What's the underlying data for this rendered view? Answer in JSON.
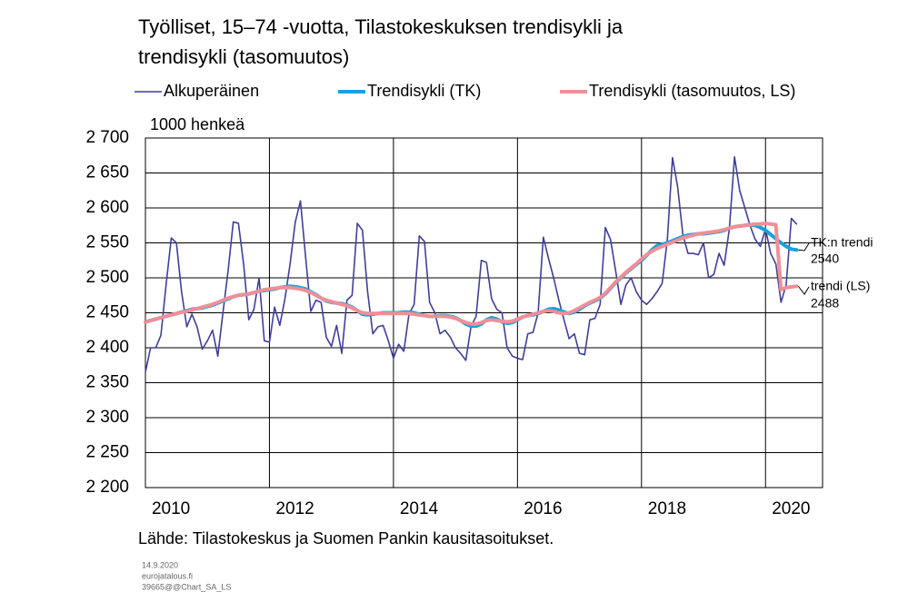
{
  "chart_data": {
    "type": "line",
    "title": "Työlliset, 15–74 -vuotta, Tilastokeskuksen trendisykli ja trendisykli (tasomuutos)",
    "title_lines": [
      "Työlliset, 15–74 -vuotta, Tilastokeskuksen trendisykli ja",
      "trendisykli (tasomuutos)"
    ],
    "y_label": "1000 henkeä",
    "source": "Lähde: Tilastokeskus ja Suomen Pankin kausitasoitukset.",
    "footer": [
      "14.9.2020",
      "eurojatalous.fi",
      "39665@@Chart_SA_LS"
    ],
    "x": [
      2010,
      2010.083,
      2010.167,
      2010.25,
      2010.333,
      2010.417,
      2010.5,
      2010.583,
      2010.667,
      2010.75,
      2010.833,
      2010.917,
      2011,
      2011.083,
      2011.167,
      2011.25,
      2011.333,
      2011.417,
      2011.5,
      2011.583,
      2011.667,
      2011.75,
      2011.833,
      2011.917,
      2012,
      2012.083,
      2012.167,
      2012.25,
      2012.333,
      2012.417,
      2012.5,
      2012.583,
      2012.667,
      2012.75,
      2012.833,
      2012.917,
      2013,
      2013.083,
      2013.167,
      2013.25,
      2013.333,
      2013.417,
      2013.5,
      2013.583,
      2013.667,
      2013.75,
      2013.833,
      2013.917,
      2014,
      2014.083,
      2014.167,
      2014.25,
      2014.333,
      2014.417,
      2014.5,
      2014.583,
      2014.667,
      2014.75,
      2014.833,
      2014.917,
      2015,
      2015.083,
      2015.167,
      2015.25,
      2015.333,
      2015.417,
      2015.5,
      2015.583,
      2015.667,
      2015.75,
      2015.833,
      2015.917,
      2016,
      2016.083,
      2016.167,
      2016.25,
      2016.333,
      2016.417,
      2016.5,
      2016.583,
      2016.667,
      2016.75,
      2016.833,
      2016.917,
      2017,
      2017.083,
      2017.167,
      2017.25,
      2017.333,
      2017.417,
      2017.5,
      2017.583,
      2017.667,
      2017.75,
      2017.833,
      2017.917,
      2018,
      2018.083,
      2018.167,
      2018.25,
      2018.333,
      2018.417,
      2018.5,
      2018.583,
      2018.667,
      2018.75,
      2018.833,
      2018.917,
      2019,
      2019.083,
      2019.167,
      2019.25,
      2019.333,
      2019.417,
      2019.5,
      2019.583,
      2019.667,
      2019.75,
      2019.833,
      2019.917,
      2020,
      2020.083,
      2020.167,
      2020.25,
      2020.333,
      2020.417,
      2020.5
    ],
    "series": [
      {
        "name": "Alkuperäinen",
        "color": "#3f3f9a",
        "width": 1.6,
        "values": [
          2365,
          2400,
          2400,
          2418,
          2490,
          2557,
          2550,
          2480,
          2430,
          2448,
          2430,
          2398,
          2410,
          2425,
          2388,
          2450,
          2510,
          2580,
          2578,
          2520,
          2440,
          2455,
          2500,
          2410,
          2408,
          2458,
          2432,
          2470,
          2520,
          2580,
          2610,
          2530,
          2452,
          2468,
          2465,
          2415,
          2402,
          2432,
          2392,
          2468,
          2475,
          2578,
          2568,
          2480,
          2420,
          2430,
          2432,
          2410,
          2385,
          2405,
          2395,
          2448,
          2462,
          2560,
          2552,
          2465,
          2450,
          2420,
          2425,
          2415,
          2400,
          2392,
          2382,
          2430,
          2445,
          2525,
          2522,
          2470,
          2455,
          2450,
          2400,
          2388,
          2385,
          2383,
          2420,
          2422,
          2450,
          2558,
          2528,
          2500,
          2468,
          2440,
          2413,
          2420,
          2392,
          2390,
          2440,
          2442,
          2462,
          2572,
          2555,
          2510,
          2462,
          2490,
          2500,
          2480,
          2468,
          2462,
          2470,
          2480,
          2492,
          2555,
          2672,
          2630,
          2562,
          2535,
          2535,
          2533,
          2550,
          2500,
          2505,
          2535,
          2518,
          2570,
          2673,
          2625,
          2600,
          2575,
          2555,
          2545,
          2570,
          2535,
          2520,
          2465,
          2490,
          2585,
          2577
        ]
      },
      {
        "name": "Trendisykli (TK)",
        "color": "#1aa0dc",
        "width": 4,
        "values": [
          2437,
          2439,
          2441,
          2443,
          2445,
          2447,
          2449,
          2451,
          2453,
          2455,
          2456,
          2457,
          2459,
          2461,
          2464,
          2467,
          2470,
          2473,
          2475,
          2476,
          2477,
          2479,
          2481,
          2482,
          2483,
          2484,
          2486,
          2487,
          2488,
          2487,
          2486,
          2484,
          2480,
          2476,
          2471,
          2467,
          2465,
          2464,
          2463,
          2461,
          2458,
          2453,
          2448,
          2447,
          2448,
          2449,
          2450,
          2450,
          2450,
          2450,
          2451,
          2451,
          2450,
          2448,
          2446,
          2445,
          2445,
          2446,
          2446,
          2445,
          2443,
          2439,
          2434,
          2431,
          2431,
          2434,
          2440,
          2443,
          2441,
          2437,
          2435,
          2436,
          2440,
          2444,
          2446,
          2447,
          2449,
          2452,
          2455,
          2456,
          2454,
          2451,
          2449,
          2451,
          2455,
          2460,
          2464,
          2467,
          2471,
          2477,
          2485,
          2493,
          2500,
          2507,
          2513,
          2519,
          2525,
          2532,
          2540,
          2546,
          2548,
          2550,
          2553,
          2556,
          2559,
          2561,
          2562,
          2563,
          2563,
          2564,
          2565,
          2566,
          2568,
          2571,
          2573,
          2574,
          2575,
          2576,
          2575,
          2572,
          2568,
          2562,
          2556,
          2550,
          2545,
          2541,
          2540
        ]
      },
      {
        "name": "Trendisykli (tasomuutos, LS)",
        "color": "#ef8f97",
        "width": 4,
        "values": [
          2437,
          2439,
          2441,
          2443,
          2445,
          2447,
          2449,
          2451,
          2452,
          2454,
          2456,
          2458,
          2460,
          2462,
          2465,
          2468,
          2471,
          2473,
          2475,
          2476,
          2477,
          2479,
          2481,
          2483,
          2484,
          2485,
          2486,
          2486,
          2486,
          2485,
          2484,
          2482,
          2479,
          2475,
          2471,
          2468,
          2466,
          2464,
          2462,
          2460,
          2457,
          2453,
          2450,
          2449,
          2449,
          2449,
          2449,
          2449,
          2449,
          2449,
          2449,
          2449,
          2448,
          2447,
          2446,
          2445,
          2445,
          2445,
          2445,
          2444,
          2442,
          2439,
          2436,
          2434,
          2434,
          2436,
          2439,
          2440,
          2439,
          2438,
          2437,
          2438,
          2441,
          2444,
          2446,
          2448,
          2450,
          2452,
          2453,
          2452,
          2450,
          2449,
          2450,
          2453,
          2457,
          2461,
          2465,
          2468,
          2472,
          2478,
          2486,
          2494,
          2501,
          2508,
          2514,
          2520,
          2527,
          2533,
          2538,
          2542,
          2545,
          2548,
          2551,
          2554,
          2557,
          2559,
          2561,
          2563,
          2564,
          2565,
          2566,
          2567,
          2569,
          2571,
          2573,
          2574,
          2575,
          2576,
          2577,
          2577,
          2578,
          2577,
          2576,
          2483,
          2486,
          2487,
          2488
        ]
      }
    ],
    "annotations": [
      {
        "label": "TK:n trendi",
        "value": 2540
      },
      {
        "label": "trendi (LS)",
        "value": 2488
      }
    ],
    "xlim": [
      2010,
      2020.92
    ],
    "xticks": [
      2010,
      2012,
      2014,
      2016,
      2018,
      2020
    ],
    "ylim": [
      2200,
      2700
    ],
    "yticks": [
      {
        "value": 2200,
        "label": "2 200"
      },
      {
        "value": 2250,
        "label": "2 250"
      },
      {
        "value": 2300,
        "label": "2 300"
      },
      {
        "value": 2350,
        "label": "2 350"
      },
      {
        "value": 2400,
        "label": "2 400"
      },
      {
        "value": 2450,
        "label": "2 450"
      },
      {
        "value": 2500,
        "label": "2 500"
      },
      {
        "value": 2550,
        "label": "2 550"
      },
      {
        "value": 2600,
        "label": "2 600"
      },
      {
        "value": 2650,
        "label": "2 650"
      },
      {
        "value": 2700,
        "label": "2 700"
      }
    ],
    "grid": true
  }
}
